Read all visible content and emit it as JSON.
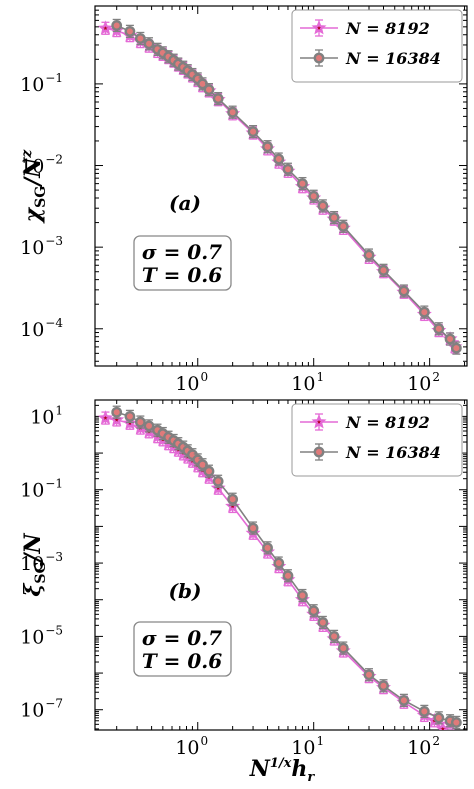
{
  "chart_data": [
    {
      "type": "line",
      "panel_label": "(a)",
      "ylabel": "χSG/N^z",
      "xlabel": "",
      "xscale": "log",
      "yscale": "log",
      "xlim": [
        0.13,
        210
      ],
      "ylim": [
        3.5e-05,
        0.9
      ],
      "xticks": [
        {
          "v": 1,
          "m": "10",
          "e": "0"
        },
        {
          "v": 10,
          "m": "10",
          "e": "1"
        },
        {
          "v": 100,
          "m": "10",
          "e": "2"
        }
      ],
      "yticks": [
        {
          "v": 0.1,
          "m": "10",
          "e": "−1"
        },
        {
          "v": 0.01,
          "m": "10",
          "e": "−2"
        },
        {
          "v": 0.001,
          "m": "10",
          "e": "−3"
        },
        {
          "v": 0.0001,
          "m": "10",
          "e": "−4"
        }
      ],
      "params": [
        "σ = 0.7",
        "T = 0.6"
      ],
      "legend_position": "top-right",
      "series": [
        {
          "name": "N = 8192",
          "color": "#e46ad6",
          "marker": "star",
          "x": [
            0.16,
            0.2,
            0.26,
            0.32,
            0.38,
            0.45,
            0.5,
            0.56,
            0.62,
            0.68,
            0.75,
            0.82,
            0.9,
            1.0,
            1.1,
            1.25,
            1.5,
            2.0,
            3.0,
            4.0,
            5.0,
            6.0,
            8.0,
            10.0,
            12.0,
            15.0,
            18.0,
            30.0,
            40.0,
            60.0,
            90.0,
            120.0,
            150.0,
            165.0
          ],
          "y": [
            0.48,
            0.45,
            0.39,
            0.33,
            0.29,
            0.25,
            0.23,
            0.21,
            0.19,
            0.17,
            0.155,
            0.14,
            0.125,
            0.11,
            0.095,
            0.082,
            0.064,
            0.043,
            0.025,
            0.016,
            0.011,
            0.0085,
            0.0055,
            0.004,
            0.003,
            0.0022,
            0.0017,
            0.00075,
            0.0005,
            0.00028,
            0.00015,
            9.5e-05,
            7.5e-05,
            6e-05
          ]
        },
        {
          "name": "N = 16384",
          "color": "#808080",
          "marker": "circle",
          "x": [
            0.2,
            0.26,
            0.32,
            0.38,
            0.45,
            0.5,
            0.56,
            0.62,
            0.68,
            0.75,
            0.82,
            0.9,
            1.0,
            1.1,
            1.25,
            1.5,
            2.0,
            3.0,
            4.0,
            5.0,
            6.0,
            8.0,
            10.0,
            12.0,
            15.0,
            18.0,
            30.0,
            40.0,
            60.0,
            90.0,
            120.0,
            150.0,
            170.0
          ],
          "y": [
            0.52,
            0.44,
            0.36,
            0.31,
            0.265,
            0.24,
            0.215,
            0.195,
            0.175,
            0.16,
            0.145,
            0.13,
            0.115,
            0.1,
            0.085,
            0.066,
            0.045,
            0.026,
            0.017,
            0.012,
            0.009,
            0.006,
            0.0042,
            0.0032,
            0.0023,
            0.0018,
            0.0008,
            0.00052,
            0.00029,
            0.00016,
            0.0001,
            7.5e-05,
            5.8e-05
          ]
        }
      ]
    },
    {
      "type": "line",
      "panel_label": "(b)",
      "ylabel": "ξSG/N",
      "xlabel": "N^(1/x) h_r",
      "xscale": "log",
      "yscale": "log",
      "xlim": [
        0.13,
        210
      ],
      "ylim": [
        2.8e-08,
        28
      ],
      "xticks": [
        {
          "v": 1,
          "m": "10",
          "e": "0"
        },
        {
          "v": 10,
          "m": "10",
          "e": "1"
        },
        {
          "v": 100,
          "m": "10",
          "e": "2"
        }
      ],
      "yticks": [
        {
          "v": 10,
          "m": "10",
          "e": "1"
        },
        {
          "v": 0.1,
          "m": "10",
          "e": "−1"
        },
        {
          "v": 0.001,
          "m": "10",
          "e": "−3"
        },
        {
          "v": 1e-05,
          "m": "10",
          "e": "−5"
        },
        {
          "v": 1e-07,
          "m": "10",
          "e": "−7"
        }
      ],
      "params": [
        "σ = 0.7",
        "T = 0.6"
      ],
      "legend_position": "top-right",
      "series": [
        {
          "name": "N = 8192",
          "color": "#e46ad6",
          "marker": "star",
          "x": [
            0.16,
            0.2,
            0.26,
            0.32,
            0.38,
            0.45,
            0.5,
            0.56,
            0.62,
            0.68,
            0.75,
            0.82,
            0.9,
            1.0,
            1.1,
            1.25,
            1.5,
            2.0,
            3.0,
            4.0,
            5.0,
            6.0,
            8.0,
            10.0,
            12.0,
            15.0,
            18.0,
            30.0,
            40.0,
            60.0,
            90.0,
            110.0,
            130.0,
            150.0
          ],
          "y": [
            9,
            8,
            6.5,
            4.8,
            3.8,
            2.8,
            2.3,
            1.8,
            1.5,
            1.2,
            0.95,
            0.78,
            0.6,
            0.45,
            0.33,
            0.22,
            0.11,
            0.035,
            0.0065,
            0.002,
            0.0008,
            0.00035,
            0.0001,
            4e-05,
            2e-05,
            8.5e-06,
            4e-06,
            8e-07,
            4e-07,
            1.6e-07,
            7e-08,
            5e-08,
            3e-08,
            4e-08
          ]
        },
        {
          "name": "N = 16384",
          "color": "#808080",
          "marker": "circle",
          "x": [
            0.2,
            0.26,
            0.32,
            0.38,
            0.45,
            0.5,
            0.56,
            0.62,
            0.68,
            0.75,
            0.82,
            0.9,
            1.0,
            1.1,
            1.25,
            1.5,
            2.0,
            3.0,
            4.0,
            5.0,
            6.0,
            8.0,
            10.0,
            12.0,
            15.0,
            18.0,
            30.0,
            40.0,
            60.0,
            90.0,
            120.0,
            150.0,
            170.0
          ],
          "y": [
            13,
            10,
            7,
            5.5,
            4.2,
            3.4,
            2.7,
            2.2,
            1.8,
            1.45,
            1.15,
            0.9,
            0.65,
            0.48,
            0.32,
            0.17,
            0.055,
            0.009,
            0.0026,
            0.001,
            0.00045,
            0.00013,
            5e-05,
            2.4e-05,
            1e-05,
            4.8e-06,
            9e-07,
            4.5e-07,
            1.8e-07,
            9e-08,
            6e-08,
            5e-08,
            4.5e-08
          ]
        }
      ]
    }
  ]
}
